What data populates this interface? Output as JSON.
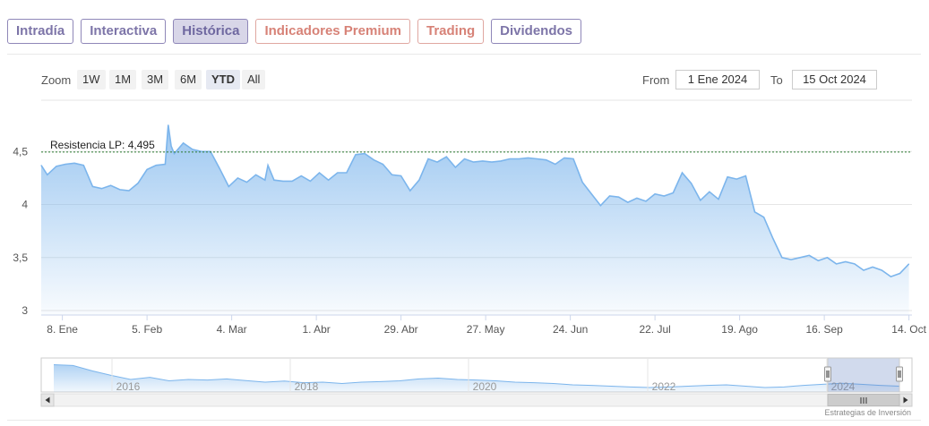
{
  "tabs": [
    {
      "label": "Intradía",
      "active": false
    },
    {
      "label": "Interactiva",
      "active": false
    },
    {
      "label": "Histórica",
      "active": true
    },
    {
      "label": "Indicadores Premium",
      "active": false
    },
    {
      "label": "Trading",
      "active": false
    },
    {
      "label": "Dividendos",
      "active": false
    }
  ],
  "zoom": {
    "label": "Zoom",
    "buttons": [
      "1W",
      "1M",
      "3M",
      "6M",
      "YTD",
      "All"
    ],
    "selected": "YTD"
  },
  "range": {
    "from_label": "From",
    "from_value": "1 Ene 2024",
    "to_label": "To",
    "to_value": "15 Oct 2024"
  },
  "credit": "Estrategias de Inversión",
  "colors": {
    "line": "#7cb5ec",
    "area_top": "#7cb5ec",
    "resistance": "#2e7d32",
    "tab_border": "#8f87b8",
    "tab_premium": "#e0a7a1"
  },
  "chart_data": {
    "type": "area",
    "title": "",
    "xlabel": "",
    "ylabel": "",
    "ylim": [
      3.0,
      5.0
    ],
    "y_ticks": [
      {
        "value": 3.0,
        "label": "3"
      },
      {
        "value": 3.5,
        "label": "3,5"
      },
      {
        "value": 4.0,
        "label": "4"
      },
      {
        "value": 4.5,
        "label": "4,5"
      }
    ],
    "x_ticks": [
      {
        "day": 7,
        "label": "8. Ene"
      },
      {
        "day": 35,
        "label": "5. Feb"
      },
      {
        "day": 63,
        "label": "4. Mar"
      },
      {
        "day": 91,
        "label": "1. Abr"
      },
      {
        "day": 119,
        "label": "29. Abr"
      },
      {
        "day": 147,
        "label": "27. May"
      },
      {
        "day": 175,
        "label": "24. Jun"
      },
      {
        "day": 203,
        "label": "22. Jul"
      },
      {
        "day": 231,
        "label": "19. Ago"
      },
      {
        "day": 259,
        "label": "16. Sep"
      },
      {
        "day": 287,
        "label": "14. Oct"
      }
    ],
    "x_range": [
      0,
      288
    ],
    "resistance": {
      "label": "Resistencia LP: 4,495",
      "value": 4.495
    },
    "series": [
      {
        "name": "",
        "x": [
          0,
          2,
          5,
          8,
          11,
          14,
          17,
          20,
          23,
          26,
          29,
          32,
          35,
          38,
          41,
          42,
          43,
          44,
          47,
          50,
          53,
          56,
          59,
          62,
          65,
          68,
          71,
          74,
          75,
          77,
          80,
          83,
          86,
          89,
          92,
          95,
          98,
          101,
          104,
          107,
          110,
          113,
          116,
          119,
          122,
          125,
          128,
          131,
          134,
          137,
          140,
          143,
          146,
          149,
          152,
          155,
          158,
          161,
          164,
          167,
          170,
          173,
          176,
          179,
          182,
          185,
          188,
          191,
          194,
          197,
          200,
          203,
          206,
          209,
          212,
          215,
          218,
          221,
          224,
          227,
          230,
          233,
          236,
          239,
          242,
          245,
          248,
          251,
          254,
          257,
          260,
          263,
          266,
          269,
          272,
          275,
          278,
          281,
          284,
          287
        ],
        "y": [
          4.37,
          4.28,
          4.36,
          4.38,
          4.39,
          4.37,
          4.17,
          4.15,
          4.18,
          4.14,
          4.13,
          4.2,
          4.33,
          4.37,
          4.38,
          4.75,
          4.55,
          4.48,
          4.58,
          4.52,
          4.5,
          4.5,
          4.34,
          4.17,
          4.25,
          4.21,
          4.28,
          4.23,
          4.37,
          4.23,
          4.22,
          4.22,
          4.27,
          4.22,
          4.3,
          4.23,
          4.3,
          4.3,
          4.47,
          4.48,
          4.42,
          4.38,
          4.28,
          4.27,
          4.13,
          4.23,
          4.43,
          4.4,
          4.45,
          4.35,
          4.43,
          4.4,
          4.41,
          4.4,
          4.41,
          4.43,
          4.43,
          4.44,
          4.43,
          4.42,
          4.38,
          4.44,
          4.43,
          4.21,
          4.1,
          3.99,
          4.08,
          4.07,
          4.02,
          4.06,
          4.03,
          4.1,
          4.08,
          4.11,
          4.3,
          4.2,
          4.04,
          4.12,
          4.05,
          4.26,
          4.24,
          4.27,
          3.93,
          3.88,
          3.68,
          3.5,
          3.48,
          3.5,
          3.52,
          3.47,
          3.5,
          3.44,
          3.46,
          3.44,
          3.38,
          3.41,
          3.38,
          3.32,
          3.35,
          3.44
        ]
      }
    ]
  },
  "navigator": {
    "x_ticks": [
      "2016",
      "2018",
      "2020",
      "2022",
      "2024"
    ],
    "profile": [
      0.95,
      0.92,
      0.72,
      0.55,
      0.4,
      0.48,
      0.35,
      0.4,
      0.38,
      0.42,
      0.36,
      0.3,
      0.34,
      0.28,
      0.3,
      0.25,
      0.3,
      0.32,
      0.35,
      0.42,
      0.45,
      0.4,
      0.38,
      0.35,
      0.3,
      0.28,
      0.25,
      0.2,
      0.18,
      0.15,
      0.12,
      0.1,
      0.12,
      0.15,
      0.18,
      0.2,
      0.15,
      0.1,
      0.12,
      0.18,
      0.22,
      0.26,
      0.22,
      0.18,
      0.15
    ]
  }
}
